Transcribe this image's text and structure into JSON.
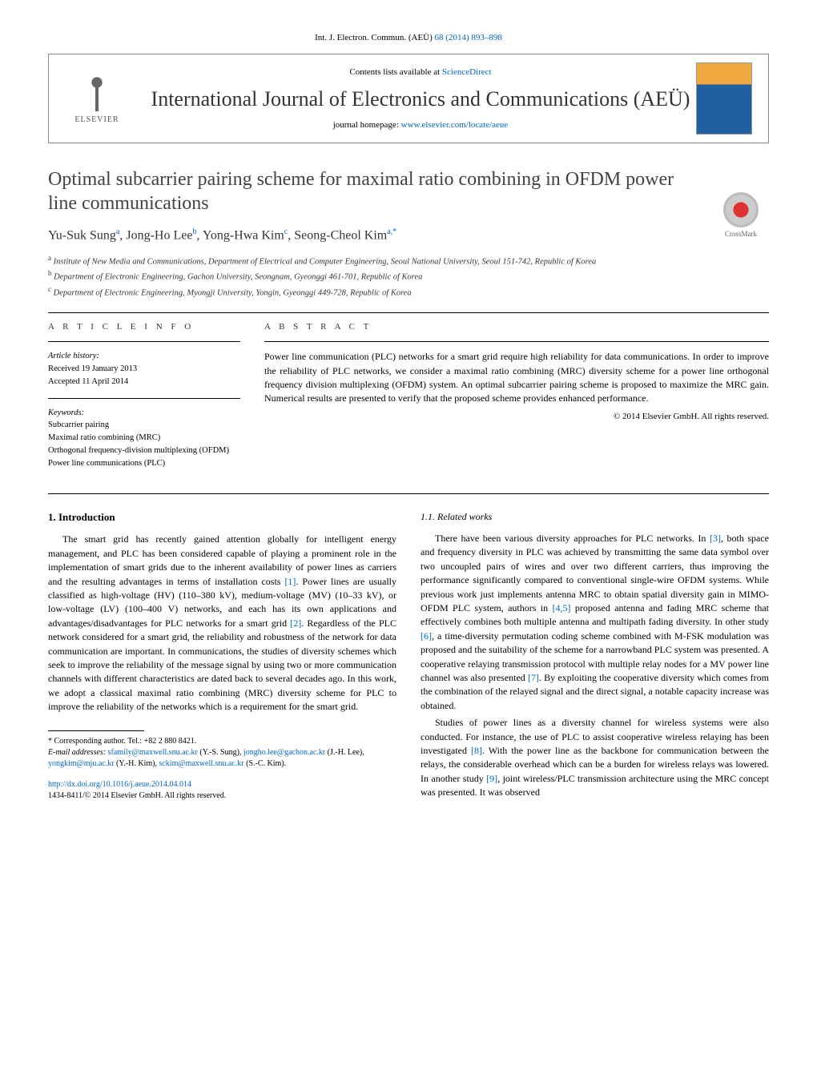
{
  "citation": {
    "prefix": "Int. J. Electron. Commun. (AEÜ) ",
    "link": "68 (2014) 893–898"
  },
  "header": {
    "contents_prefix": "Contents lists available at ",
    "contents_link": "ScienceDirect",
    "journal_name": "International Journal of Electronics and Communications (AEÜ)",
    "homepage_prefix": "journal homepage: ",
    "homepage_link": "www.elsevier.com/locate/aeue",
    "elsevier_label": "ELSEVIER"
  },
  "crossmark_label": "CrossMark",
  "title": "Optimal subcarrier pairing scheme for maximal ratio combining in OFDM power line communications",
  "authors_html": "Yu-Suk Sung<sup>a</sup>, Jong-Ho Lee<sup>b</sup>, Yong-Hwa Kim<sup>c</sup>, Seong-Cheol Kim<sup>a,*</sup>",
  "affiliations": {
    "a": "Institute of New Media and Communications, Department of Electrical and Computer Engineering, Seoul National University, Seoul 151-742, Republic of Korea",
    "b": "Department of Electronic Engineering, Gachon University, Seongnam, Gyeonggi 461-701, Republic of Korea",
    "c": "Department of Electronic Engineering, Myongji University, Yongin, Gyeonggi 449-728, Republic of Korea"
  },
  "article_info": {
    "label": "A R T I C L E   I N F O",
    "history_label": "Article history:",
    "received": "Received 19 January 2013",
    "accepted": "Accepted 11 April 2014",
    "keywords_label": "Keywords:",
    "keywords": [
      "Subcarrier pairing",
      "Maximal ratio combining (MRC)",
      "Orthogonal frequency-division multiplexing (OFDM)",
      "Power line communications (PLC)"
    ]
  },
  "abstract": {
    "label": "A B S T R A C T",
    "text": "Power line communication (PLC) networks for a smart grid require high reliability for data communications. In order to improve the reliability of PLC networks, we consider a maximal ratio combining (MRC) diversity scheme for a power line orthogonal frequency division multiplexing (OFDM) system. An optimal subcarrier pairing scheme is proposed to maximize the MRC gain. Numerical results are presented to verify that the proposed scheme provides enhanced performance.",
    "copyright": "© 2014 Elsevier GmbH. All rights reserved."
  },
  "sections": {
    "intro_heading": "1.  Introduction",
    "intro_p1_pre": "The smart grid has recently gained attention globally for intelligent energy management, and PLC has been considered capable of playing a prominent role in the implementation of smart grids due to the inherent availability of power lines as carriers and the resulting advantages in terms of installation costs ",
    "ref1": "[1]",
    "intro_p1_mid": ". Power lines are usually classified as high-voltage (HV) (110–380 kV), medium-voltage (MV) (10–33 kV), or low-voltage (LV) (100–400 V) networks, and each has its own applications and advantages/disadvantages for PLC networks for a smart grid ",
    "ref2": "[2]",
    "intro_p1_post": ". Regardless of the PLC network considered for a smart grid, the reliability and robustness of the network for data communication are important. In communications, the studies of diversity schemes which seek to improve the reliability of the message signal by using two or more communication channels with different characteristics are dated back to several decades ago. In this work, we adopt a classical maximal ratio combining (MRC) diversity scheme for PLC to improve the reliability of the networks which is a requirement for the smart grid.",
    "related_heading": "1.1.  Related works",
    "rel_p1_a": "There have been various diversity approaches for PLC networks. In ",
    "ref3": "[3]",
    "rel_p1_b": ", both space and frequency diversity in PLC was achieved by transmitting the same data symbol over two uncoupled pairs of wires and over two different carriers, thus improving the performance significantly compared to conventional single-wire OFDM systems. While previous work just implements antenna MRC to obtain spatial diversity gain in MIMO-OFDM PLC system, authors in ",
    "ref45": "[4,5]",
    "rel_p1_c": " proposed antenna and fading MRC scheme that effectively combines both multiple antenna and multipath fading diversity. In other study ",
    "ref6": "[6]",
    "rel_p1_d": ", a time-diversity permutation coding scheme combined with M-FSK modulation was proposed and the suitability of the scheme for a narrowband PLC system was presented. A cooperative relaying transmission protocol with multiple relay nodes for a MV power line channel was also presented ",
    "ref7": "[7]",
    "rel_p1_e": ". By exploiting the cooperative diversity which comes from the combination of the relayed signal and the direct signal, a notable capacity increase was obtained.",
    "rel_p2_a": "Studies of power lines as a diversity channel for wireless systems were also conducted. For instance, the use of PLC to assist cooperative wireless relaying has been investigated ",
    "ref8": "[8]",
    "rel_p2_b": ". With the power line as the backbone for communication between the relays, the considerable overhead which can be a burden for wireless relays was lowered. In another study ",
    "ref9": "[9]",
    "rel_p2_c": ", joint wireless/PLC transmission architecture using the MRC concept was presented. It was observed"
  },
  "footnotes": {
    "corr": "* Corresponding author. Tel.: +82 2 880 8421.",
    "email_label": "E-mail addresses: ",
    "e1": "sfamily@maxwell.snu.ac.kr",
    "n1": " (Y.-S. Sung), ",
    "e2": "jongho.lee@gachon.ac.kr",
    "n2": " (J.-H. Lee), ",
    "e3": "yongkim@mju.ac.kr",
    "n3": " (Y.-H. Kim), ",
    "e4": "sckim@maxwell.snu.ac.kr",
    "n4": " (S.-C. Kim)."
  },
  "doi": {
    "link": "http://dx.doi.org/10.1016/j.aeue.2014.04.014",
    "issn": "1434-8411/© 2014 Elsevier GmbH. All rights reserved."
  },
  "colors": {
    "link": "#0066cc",
    "text": "#000000",
    "heading": "#424242"
  }
}
